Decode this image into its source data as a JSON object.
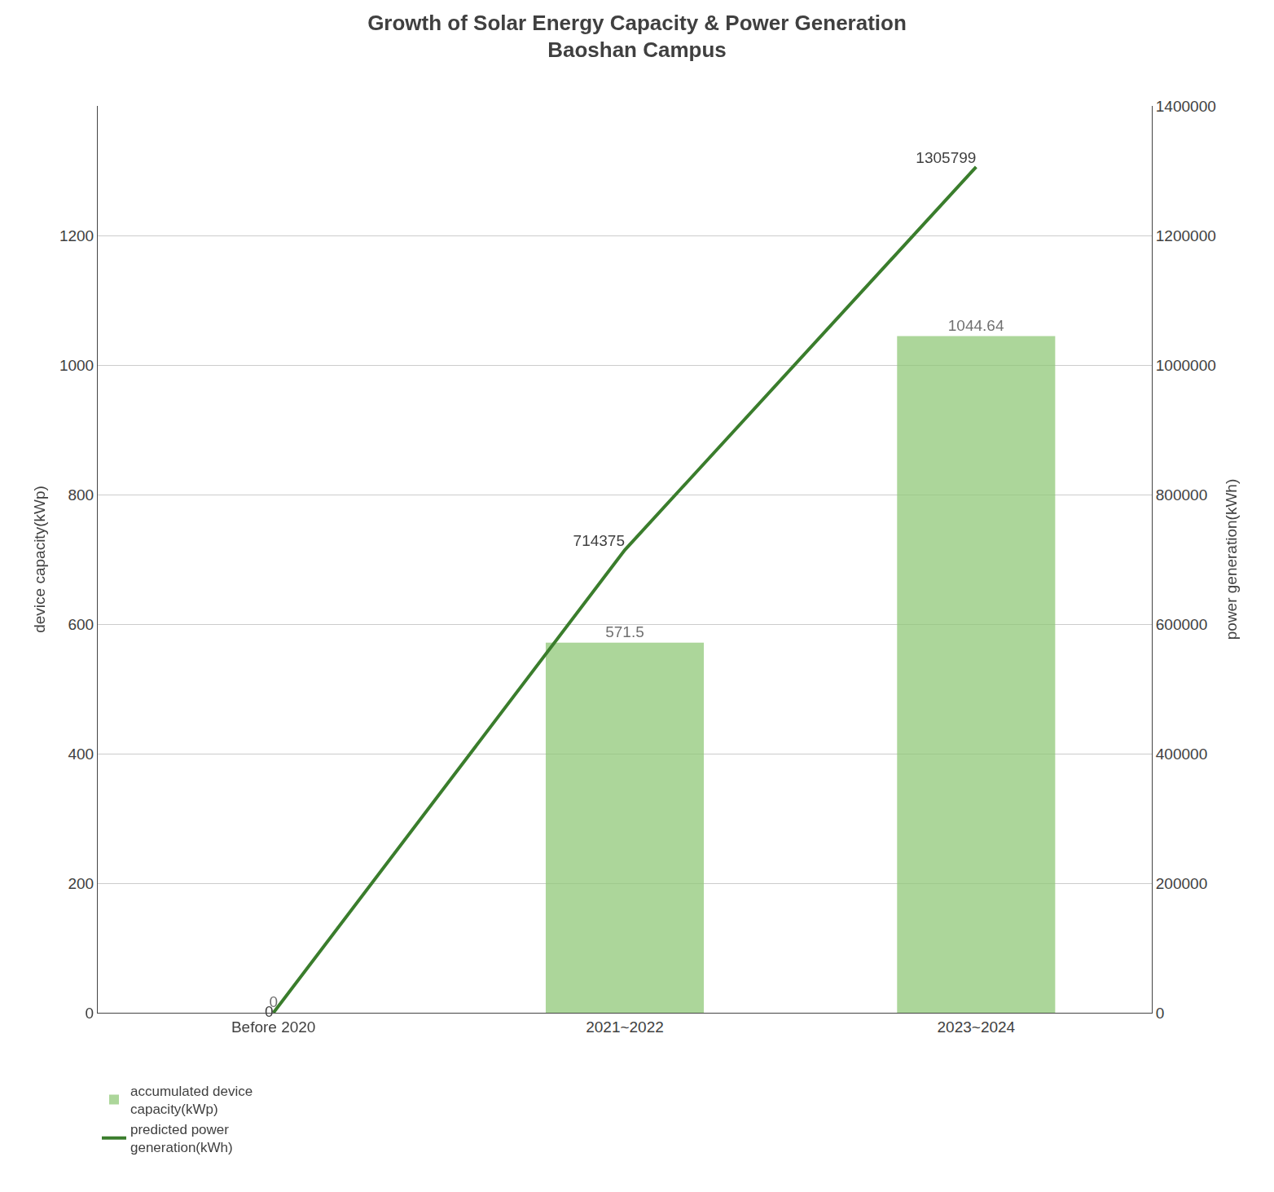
{
  "chart_data": {
    "type": "bar",
    "title": "Growth of Solar Energy Capacity & Power Generation\nBaoshan Campus",
    "categories": [
      "Before 2020",
      "2021~2022",
      "2023~2024"
    ],
    "series": [
      {
        "name": "accumulated device\ncapacity(kWp)",
        "type": "bar",
        "color": "#90C878",
        "values": [
          0,
          571.5,
          1044.64
        ]
      },
      {
        "name": "predicted power\ngeneration(kWh)",
        "type": "line",
        "color": "#3A7D2C",
        "values": [
          0,
          714375,
          1305799
        ],
        "axis": "y2"
      }
    ],
    "ylabel": "device capacity(kWp)",
    "y2label": "power generation(kWh)",
    "ylim": [
      0,
      1400
    ],
    "yticks": [
      0,
      200,
      400,
      600,
      800,
      1000,
      1200
    ],
    "y2lim": [
      0,
      1400000
    ],
    "y2ticks": [
      0,
      200000,
      400000,
      600000,
      800000,
      1000000,
      1200000,
      1400000
    ],
    "grid": true,
    "legend": "bottom",
    "data_labels": true
  }
}
